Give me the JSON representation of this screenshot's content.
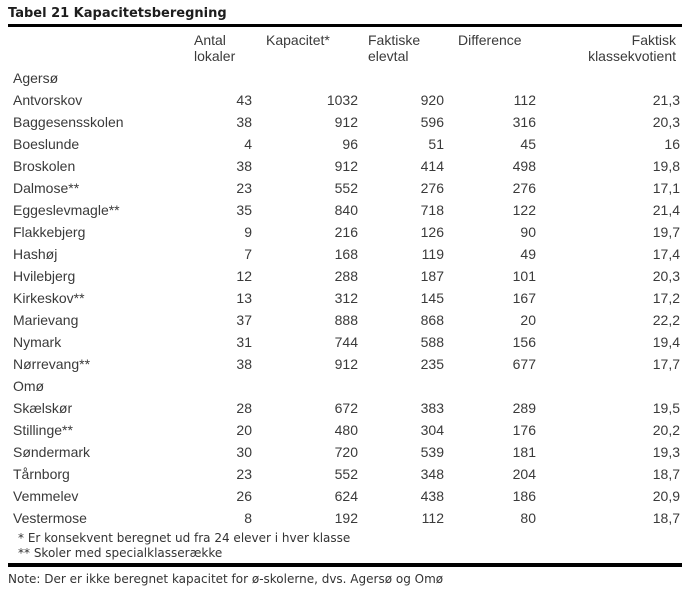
{
  "title": "Tabel 21 Kapacitetsberegning",
  "table": {
    "columns": [
      "",
      "Antal\nlokaler",
      "Kapacitet*",
      "Faktiske\nelevtal",
      "Difference",
      "Faktisk\nklassekvotient"
    ],
    "rows": [
      {
        "name": "Agersø",
        "group": true,
        "values": [
          "",
          "",
          "",
          "",
          ""
        ]
      },
      {
        "name": "Antvorskov",
        "group": false,
        "values": [
          "43",
          "1032",
          "920",
          "112",
          "21,3"
        ]
      },
      {
        "name": "Baggesensskolen",
        "group": false,
        "values": [
          "38",
          "912",
          "596",
          "316",
          "20,3"
        ]
      },
      {
        "name": "Boeslunde",
        "group": false,
        "values": [
          "4",
          "96",
          "51",
          "45",
          "16"
        ]
      },
      {
        "name": "Broskolen",
        "group": false,
        "values": [
          "38",
          "912",
          "414",
          "498",
          "19,8"
        ]
      },
      {
        "name": "Dalmose**",
        "group": false,
        "values": [
          "23",
          "552",
          "276",
          "276",
          "17,1"
        ]
      },
      {
        "name": "Eggeslevmagle**",
        "group": false,
        "values": [
          "35",
          "840",
          "718",
          "122",
          "21,4"
        ]
      },
      {
        "name": "Flakkebjerg",
        "group": false,
        "values": [
          "9",
          "216",
          "126",
          "90",
          "19,7"
        ]
      },
      {
        "name": "Hashøj",
        "group": false,
        "values": [
          "7",
          "168",
          "119",
          "49",
          "17,4"
        ]
      },
      {
        "name": "Hvilebjerg",
        "group": false,
        "values": [
          "12",
          "288",
          "187",
          "101",
          "20,3"
        ]
      },
      {
        "name": "Kirkeskov**",
        "group": false,
        "values": [
          "13",
          "312",
          "145",
          "167",
          "17,2"
        ]
      },
      {
        "name": "Marievang",
        "group": false,
        "values": [
          "37",
          "888",
          "868",
          "20",
          "22,2"
        ]
      },
      {
        "name": "Nymark",
        "group": false,
        "values": [
          "31",
          "744",
          "588",
          "156",
          "19,4"
        ]
      },
      {
        "name": "Nørrevang**",
        "group": false,
        "values": [
          "38",
          "912",
          "235",
          "677",
          "17,7"
        ]
      },
      {
        "name": "Omø",
        "group": true,
        "values": [
          "",
          "",
          "",
          "",
          ""
        ]
      },
      {
        "name": "Skælskør",
        "group": false,
        "values": [
          "28",
          "672",
          "383",
          "289",
          "19,5"
        ]
      },
      {
        "name": "Stillinge**",
        "group": false,
        "values": [
          "20",
          "480",
          "304",
          "176",
          "20,2"
        ]
      },
      {
        "name": "Søndermark",
        "group": false,
        "values": [
          "30",
          "720",
          "539",
          "181",
          "19,3"
        ]
      },
      {
        "name": "Tårnborg",
        "group": false,
        "values": [
          "23",
          "552",
          "348",
          "204",
          "18,7"
        ]
      },
      {
        "name": "Vemmelev",
        "group": false,
        "values": [
          "26",
          "624",
          "438",
          "186",
          "20,9"
        ]
      },
      {
        "name": "Vestermose",
        "group": false,
        "values": [
          "8",
          "192",
          "112",
          "80",
          "18,7"
        ]
      }
    ]
  },
  "footnotes": [
    "* Er konsekvent beregnet ud fra 24 elever i hver klasse",
    "** Skoler med specialklasserække"
  ],
  "note": "Note: Der er ikke beregnet kapacitet for ø-skolerne, dvs. Agersø og Omø",
  "colors": {
    "text": "#3a3a3a",
    "rule": "#000000",
    "background": "#ffffff"
  }
}
